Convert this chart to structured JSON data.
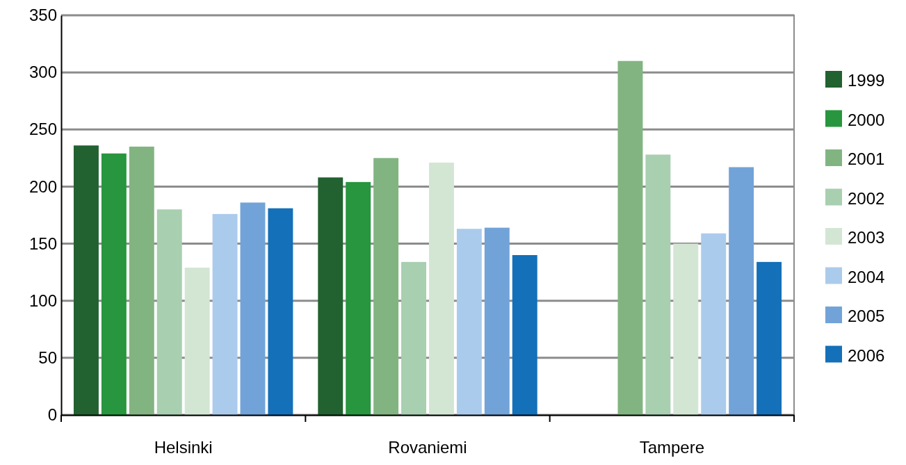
{
  "chart_data": {
    "type": "bar",
    "categories": [
      "Helsinki",
      "Rovaniemi",
      "Tampere"
    ],
    "series": [
      {
        "name": "1999",
        "color": "#226130",
        "values": [
          236,
          208,
          null
        ]
      },
      {
        "name": "2000",
        "color": "#27963e",
        "values": [
          229,
          204,
          null
        ]
      },
      {
        "name": "2001",
        "color": "#82b482",
        "values": [
          235,
          225,
          310
        ]
      },
      {
        "name": "2002",
        "color": "#a8cfb0",
        "values": [
          180,
          134,
          228
        ]
      },
      {
        "name": "2003",
        "color": "#d3e6d4",
        "values": [
          129,
          221,
          150
        ]
      },
      {
        "name": "2004",
        "color": "#abcbec",
        "values": [
          176,
          163,
          159
        ]
      },
      {
        "name": "2005",
        "color": "#72a3d8",
        "values": [
          186,
          164,
          217
        ]
      },
      {
        "name": "2006",
        "color": "#1470b8",
        "values": [
          181,
          140,
          134
        ]
      }
    ],
    "ylim": [
      0,
      350
    ],
    "yticks": [
      0,
      50,
      100,
      150,
      200,
      250,
      300,
      350
    ],
    "grid": "y",
    "legend": "right"
  }
}
